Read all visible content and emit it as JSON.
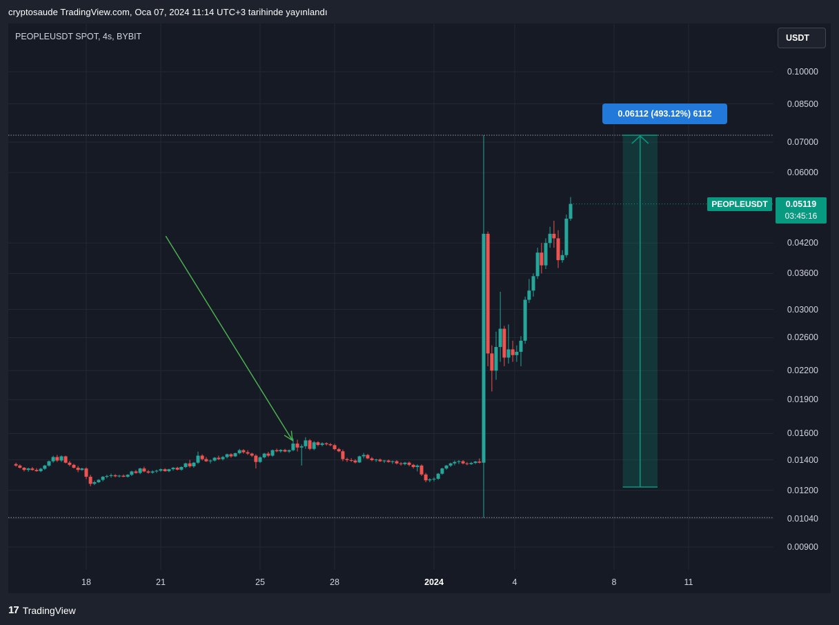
{
  "header": {
    "text": "cryptosaude TradingView.com, Oca 07, 2024 11:14 UTC+3 tarihinde yayınlandı"
  },
  "symbol": {
    "title": "PEOPLEUSDT SPOT, 4s, BYBIT",
    "ticker": "PEOPLEUSDT"
  },
  "currency_button": {
    "label": "USDT"
  },
  "last_price": {
    "value": "0.05119",
    "countdown": "03:45:16"
  },
  "measure": {
    "label": "0.06112 (493.12%) 6112"
  },
  "footer": {
    "brand": "TradingView",
    "logo_glyph": "17"
  },
  "colors": {
    "up": "#26a69a",
    "down": "#ef5350",
    "arrow": "#4caf50",
    "accent": "#089981",
    "measure_box": "#2279d9"
  },
  "icons": {
    "footer_logo": "tradingview-logo-icon",
    "annotation": "arrow-annotation-icon"
  },
  "chart_data": {
    "type": "candlestick",
    "title": "PEOPLEUSDT SPOT, 4s, BYBIT",
    "y_scale": "log",
    "y_ticks": [
      "0.10000",
      "0.08500",
      "0.07000",
      "0.06000",
      "0.04200",
      "0.03600",
      "0.03000",
      "0.02600",
      "0.02200",
      "0.01900",
      "0.01600",
      "0.01400",
      "0.01200",
      "0.01040",
      "0.00900"
    ],
    "x_ticks": [
      {
        "label": "18",
        "day": 18,
        "bold": false
      },
      {
        "label": "21",
        "day": 21,
        "bold": false
      },
      {
        "label": "25",
        "day": 25,
        "bold": false
      },
      {
        "label": "28",
        "day": 28,
        "bold": false
      },
      {
        "label": "2024",
        "day": 32,
        "bold": true
      },
      {
        "label": "4",
        "day": 35.25,
        "bold": false
      },
      {
        "label": "8",
        "day": 39.25,
        "bold": false
      },
      {
        "label": "11",
        "day": 42.25,
        "bold": false
      }
    ],
    "highs_lows_dotted": {
      "high": 0.0725,
      "low": 0.01045
    },
    "measure_range": {
      "from_day": 39.6,
      "to_day": 41.0,
      "low": 0.0122,
      "high": 0.0725
    },
    "annotation_arrow": {
      "from_day": 21.2,
      "from_value": 0.0435,
      "to_day": 26.3,
      "to_value": 0.01545
    },
    "candles": [
      [
        15.17,
        0.0137,
        0.0138,
        0.01352,
        0.0136
      ],
      [
        15.33,
        0.0136,
        0.01368,
        0.0134,
        0.01345
      ],
      [
        15.5,
        0.01345,
        0.0135,
        0.0132,
        0.0133
      ],
      [
        15.67,
        0.0133,
        0.01345,
        0.01318,
        0.0134
      ],
      [
        15.83,
        0.0134,
        0.0135,
        0.01325,
        0.0133
      ],
      [
        16.0,
        0.0133,
        0.01342,
        0.01318,
        0.01322
      ],
      [
        16.17,
        0.01322,
        0.01345,
        0.01315,
        0.01338
      ],
      [
        16.33,
        0.01338,
        0.01365,
        0.0133,
        0.0136
      ],
      [
        16.5,
        0.0136,
        0.01395,
        0.01352,
        0.0139
      ],
      [
        16.67,
        0.0139,
        0.0143,
        0.0138,
        0.0142
      ],
      [
        16.83,
        0.0142,
        0.01435,
        0.01385,
        0.01395
      ],
      [
        17.0,
        0.01395,
        0.01432,
        0.01385,
        0.01425
      ],
      [
        17.17,
        0.01425,
        0.0143,
        0.01375,
        0.0138
      ],
      [
        17.33,
        0.0138,
        0.01392,
        0.01355,
        0.01365
      ],
      [
        17.5,
        0.01365,
        0.01372,
        0.0134,
        0.01345
      ],
      [
        17.67,
        0.01345,
        0.01358,
        0.01315,
        0.0133
      ],
      [
        17.83,
        0.0133,
        0.01345,
        0.01325,
        0.0134
      ],
      [
        18.0,
        0.0134,
        0.01348,
        0.0127,
        0.01285
      ],
      [
        18.17,
        0.01285,
        0.01298,
        0.01225,
        0.0124
      ],
      [
        18.33,
        0.0124,
        0.0126,
        0.01232,
        0.0125
      ],
      [
        18.5,
        0.0125,
        0.0127,
        0.01245,
        0.01265
      ],
      [
        18.67,
        0.01265,
        0.0129,
        0.01255,
        0.01285
      ],
      [
        18.83,
        0.01285,
        0.01298,
        0.01275,
        0.0129
      ],
      [
        19.0,
        0.0129,
        0.01305,
        0.0128,
        0.01295
      ],
      [
        19.17,
        0.01295,
        0.01302,
        0.01282,
        0.01288
      ],
      [
        19.33,
        0.01288,
        0.01298,
        0.0128,
        0.01292
      ],
      [
        19.5,
        0.01292,
        0.013,
        0.01282,
        0.01285
      ],
      [
        19.67,
        0.01285,
        0.01302,
        0.0128,
        0.01298
      ],
      [
        19.83,
        0.01298,
        0.01325,
        0.0129,
        0.0132
      ],
      [
        20.0,
        0.0132,
        0.0133,
        0.01305,
        0.0131
      ],
      [
        20.17,
        0.0131,
        0.01345,
        0.01302,
        0.0134
      ],
      [
        20.33,
        0.0134,
        0.01352,
        0.01315,
        0.0132
      ],
      [
        20.5,
        0.0132,
        0.0133,
        0.01305,
        0.01312
      ],
      [
        20.67,
        0.01312,
        0.01328,
        0.01305,
        0.0132
      ],
      [
        20.83,
        0.0132,
        0.01332,
        0.0131,
        0.01325
      ],
      [
        21.0,
        0.01325,
        0.0134,
        0.01318,
        0.01335
      ],
      [
        21.17,
        0.01335,
        0.01342,
        0.01318,
        0.01322
      ],
      [
        21.33,
        0.01322,
        0.01338,
        0.01315,
        0.01335
      ],
      [
        21.5,
        0.01335,
        0.0135,
        0.01325,
        0.01345
      ],
      [
        21.67,
        0.01345,
        0.01352,
        0.01328,
        0.01332
      ],
      [
        21.83,
        0.01332,
        0.01355,
        0.01325,
        0.0135
      ],
      [
        22.0,
        0.0135,
        0.0138,
        0.01342,
        0.01375
      ],
      [
        22.17,
        0.01375,
        0.014,
        0.01345,
        0.01355
      ],
      [
        22.33,
        0.01355,
        0.01385,
        0.01345,
        0.0138
      ],
      [
        22.5,
        0.0138,
        0.0146,
        0.01372,
        0.0143
      ],
      [
        22.67,
        0.0143,
        0.0144,
        0.01395,
        0.01405
      ],
      [
        22.83,
        0.01405,
        0.0142,
        0.01385,
        0.0139
      ],
      [
        23.0,
        0.0139,
        0.01402,
        0.01375,
        0.01395
      ],
      [
        23.17,
        0.01395,
        0.0142,
        0.01388,
        0.01415
      ],
      [
        23.33,
        0.01415,
        0.0143,
        0.01398,
        0.01405
      ],
      [
        23.5,
        0.01405,
        0.01428,
        0.01395,
        0.0142
      ],
      [
        23.67,
        0.0142,
        0.01445,
        0.0141,
        0.0144
      ],
      [
        23.83,
        0.0144,
        0.01448,
        0.01415,
        0.01425
      ],
      [
        24.0,
        0.01425,
        0.01452,
        0.0142,
        0.01448
      ],
      [
        24.17,
        0.01448,
        0.0148,
        0.0144,
        0.0147
      ],
      [
        24.33,
        0.0147,
        0.01478,
        0.01445,
        0.01455
      ],
      [
        24.5,
        0.01455,
        0.0147,
        0.01435,
        0.01445
      ],
      [
        24.67,
        0.01445,
        0.01452,
        0.0142,
        0.0143
      ],
      [
        24.83,
        0.0143,
        0.0144,
        0.0134,
        0.01385
      ],
      [
        25.0,
        0.01385,
        0.01425,
        0.01378,
        0.01418
      ],
      [
        25.17,
        0.01418,
        0.0145,
        0.0141,
        0.01445
      ],
      [
        25.33,
        0.01445,
        0.01458,
        0.0142,
        0.0143
      ],
      [
        25.5,
        0.0143,
        0.01475,
        0.01422,
        0.0147
      ],
      [
        25.67,
        0.0147,
        0.01482,
        0.01455,
        0.01462
      ],
      [
        25.83,
        0.01462,
        0.01478,
        0.01452,
        0.01472
      ],
      [
        26.0,
        0.01472,
        0.0148,
        0.01455,
        0.0146
      ],
      [
        26.17,
        0.0146,
        0.01475,
        0.0145,
        0.0147
      ],
      [
        26.33,
        0.0147,
        0.0156,
        0.01462,
        0.0152
      ],
      [
        26.5,
        0.0152,
        0.0155,
        0.0146,
        0.0149
      ],
      [
        26.67,
        0.0149,
        0.01515,
        0.0136,
        0.015
      ],
      [
        26.83,
        0.015,
        0.0157,
        0.0148,
        0.01545
      ],
      [
        27.0,
        0.01545,
        0.01555,
        0.0147,
        0.0148
      ],
      [
        27.17,
        0.0148,
        0.0154,
        0.0147,
        0.0153
      ],
      [
        27.33,
        0.0153,
        0.01538,
        0.015,
        0.0151
      ],
      [
        27.5,
        0.0151,
        0.0153,
        0.015,
        0.01522
      ],
      [
        27.67,
        0.01522,
        0.0153,
        0.01505,
        0.01515
      ],
      [
        27.83,
        0.01515,
        0.01525,
        0.015,
        0.01508
      ],
      [
        28.0,
        0.01508,
        0.01518,
        0.0147,
        0.01478
      ],
      [
        28.17,
        0.01478,
        0.01488,
        0.01455,
        0.01462
      ],
      [
        28.33,
        0.01462,
        0.01475,
        0.0139,
        0.01405
      ],
      [
        28.5,
        0.01405,
        0.01415,
        0.01385,
        0.01398
      ],
      [
        28.67,
        0.01398,
        0.01412,
        0.01385,
        0.01395
      ],
      [
        28.83,
        0.01395,
        0.01405,
        0.01375,
        0.01382
      ],
      [
        29.0,
        0.01382,
        0.0143,
        0.01378,
        0.01425
      ],
      [
        29.17,
        0.01425,
        0.0145,
        0.0141,
        0.01435
      ],
      [
        29.33,
        0.01435,
        0.01442,
        0.01405,
        0.0141
      ],
      [
        29.5,
        0.0141,
        0.0142,
        0.0139,
        0.01398
      ],
      [
        29.67,
        0.01398,
        0.01408,
        0.01385,
        0.01402
      ],
      [
        29.83,
        0.01402,
        0.0141,
        0.01385,
        0.0139
      ],
      [
        30.0,
        0.0139,
        0.014,
        0.01378,
        0.01395
      ],
      [
        30.17,
        0.01395,
        0.01402,
        0.0138,
        0.01385
      ],
      [
        30.33,
        0.01385,
        0.01395,
        0.01372,
        0.0139
      ],
      [
        30.5,
        0.0139,
        0.01398,
        0.01368,
        0.01375
      ],
      [
        30.67,
        0.01375,
        0.01385,
        0.0136,
        0.0137
      ],
      [
        30.83,
        0.0137,
        0.01385,
        0.01362,
        0.0138
      ],
      [
        31.0,
        0.0138,
        0.01388,
        0.01355,
        0.01365
      ],
      [
        31.17,
        0.01365,
        0.01372,
        0.0134,
        0.0135
      ],
      [
        31.33,
        0.0135,
        0.01368,
        0.0132,
        0.0136
      ],
      [
        31.5,
        0.0136,
        0.01368,
        0.0129,
        0.013
      ],
      [
        31.67,
        0.013,
        0.0131,
        0.0125,
        0.01262
      ],
      [
        31.83,
        0.01262,
        0.01275,
        0.0125,
        0.01268
      ],
      [
        32.0,
        0.01268,
        0.01282,
        0.01255,
        0.01272
      ],
      [
        32.17,
        0.01272,
        0.0131,
        0.01265,
        0.01305
      ],
      [
        32.33,
        0.01305,
        0.01345,
        0.01298,
        0.0134
      ],
      [
        32.5,
        0.0134,
        0.01365,
        0.01332,
        0.0136
      ],
      [
        32.67,
        0.0136,
        0.0138,
        0.0135,
        0.01375
      ],
      [
        32.83,
        0.01375,
        0.01395,
        0.01362,
        0.01385
      ],
      [
        33.0,
        0.01385,
        0.01398,
        0.0137,
        0.0139
      ],
      [
        33.17,
        0.0139,
        0.01398,
        0.01368,
        0.01375
      ],
      [
        33.33,
        0.01375,
        0.01385,
        0.01362,
        0.0137
      ],
      [
        33.5,
        0.0137,
        0.01385,
        0.01365,
        0.01378
      ],
      [
        33.67,
        0.01378,
        0.01392,
        0.0137,
        0.01388
      ],
      [
        33.83,
        0.01388,
        0.0141,
        0.01375,
        0.0138
      ],
      [
        34.0,
        0.0138,
        0.0725,
        0.01045,
        0.044
      ],
      [
        34.17,
        0.044,
        0.0445,
        0.0225,
        0.024
      ],
      [
        34.33,
        0.024,
        0.025,
        0.0198,
        0.022
      ],
      [
        34.5,
        0.022,
        0.0268,
        0.021,
        0.0248
      ],
      [
        34.67,
        0.0248,
        0.0328,
        0.023,
        0.0272
      ],
      [
        34.83,
        0.0272,
        0.0276,
        0.0225,
        0.0235
      ],
      [
        35.0,
        0.0235,
        0.0278,
        0.0228,
        0.0245
      ],
      [
        35.17,
        0.0245,
        0.0256,
        0.023,
        0.0238
      ],
      [
        35.33,
        0.0238,
        0.025,
        0.023,
        0.0242
      ],
      [
        35.5,
        0.0242,
        0.0262,
        0.0225,
        0.0256
      ],
      [
        35.67,
        0.0256,
        0.032,
        0.0252,
        0.0315
      ],
      [
        35.83,
        0.0315,
        0.035,
        0.031,
        0.033
      ],
      [
        36.0,
        0.033,
        0.036,
        0.032,
        0.0355
      ],
      [
        36.17,
        0.0355,
        0.041,
        0.035,
        0.04
      ],
      [
        36.33,
        0.04,
        0.042,
        0.036,
        0.0375
      ],
      [
        36.5,
        0.0375,
        0.043,
        0.0368,
        0.042
      ],
      [
        36.67,
        0.042,
        0.0456,
        0.041,
        0.044
      ],
      [
        36.83,
        0.044,
        0.047,
        0.041,
        0.043
      ],
      [
        37.0,
        0.043,
        0.0448,
        0.037,
        0.0385
      ],
      [
        37.17,
        0.0385,
        0.0405,
        0.038,
        0.0395
      ],
      [
        37.33,
        0.0395,
        0.0485,
        0.039,
        0.0475
      ],
      [
        37.5,
        0.0475,
        0.053,
        0.047,
        0.0512
      ]
    ]
  }
}
